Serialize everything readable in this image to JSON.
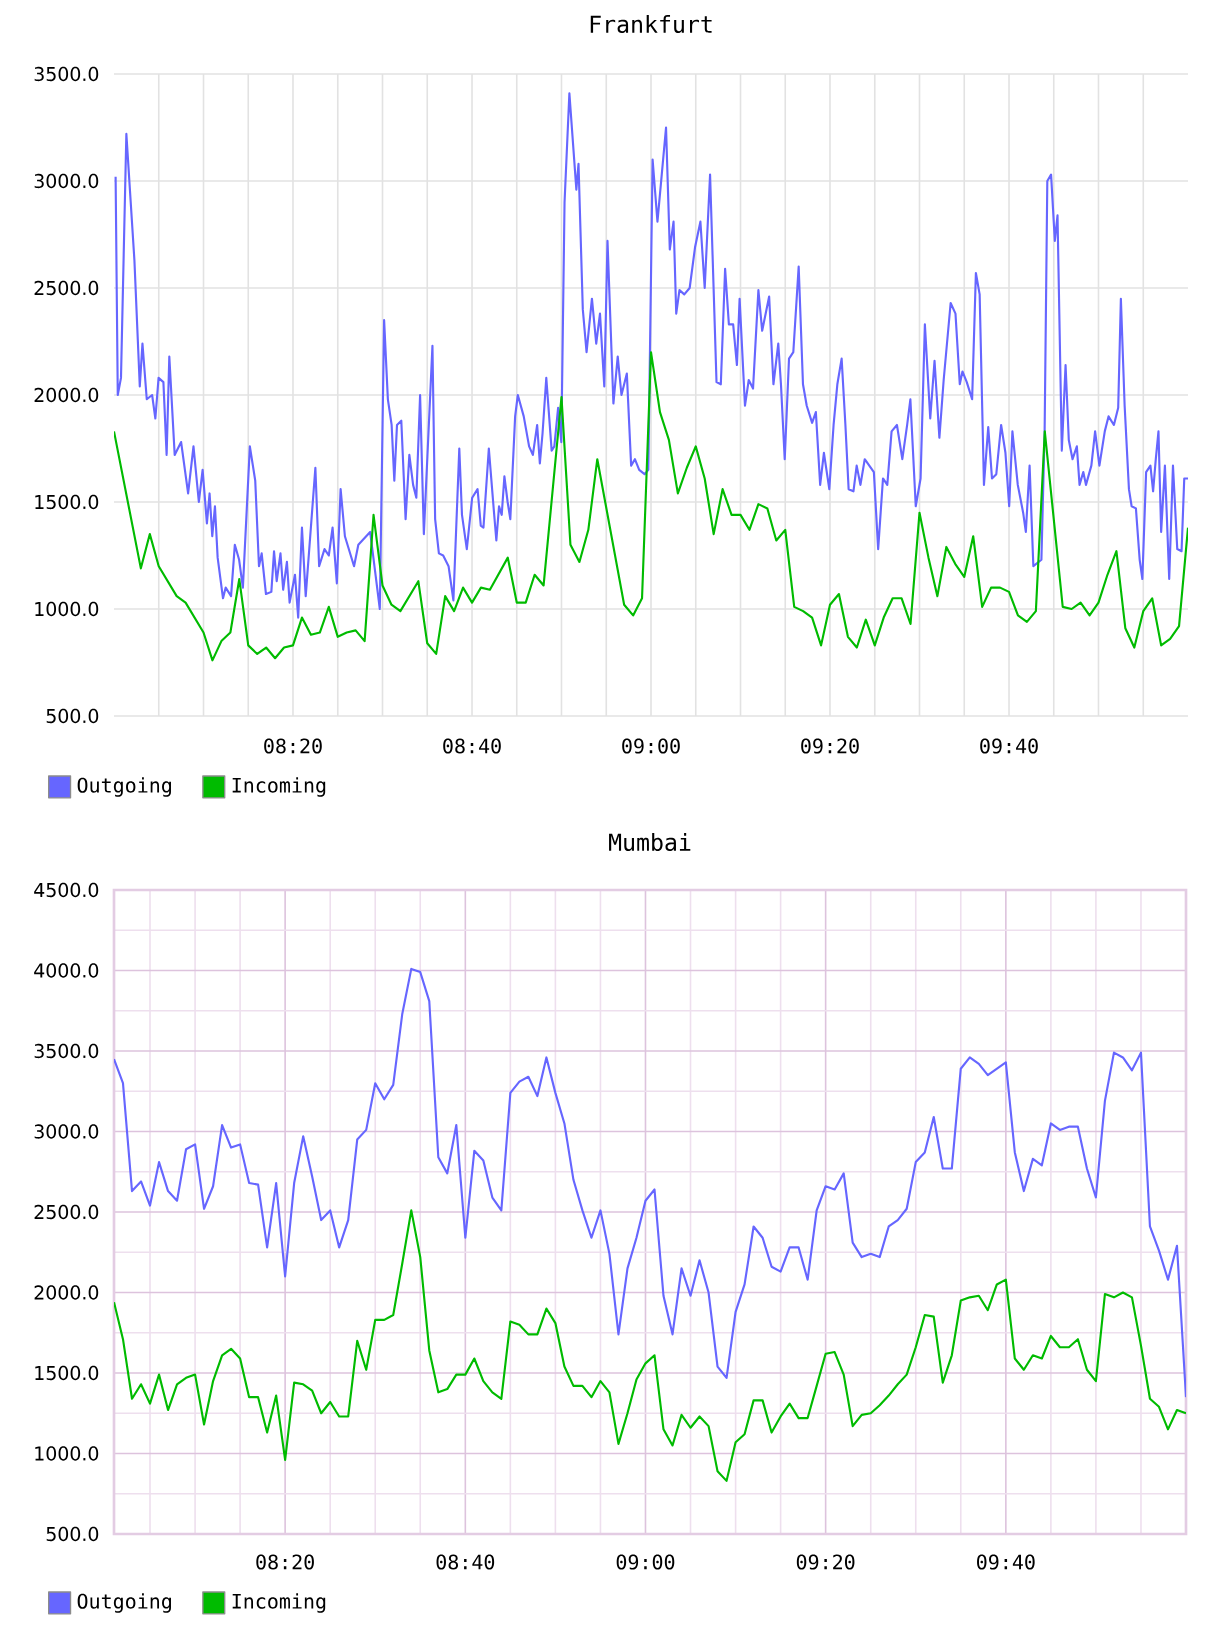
{
  "chart_data": [
    {
      "type": "line",
      "title": "Frankfurt",
      "xlim": [
        8.0,
        10.0
      ],
      "ylim": [
        500,
        3500
      ],
      "xticks": [
        {
          "value": 8.0833,
          "label": null
        },
        {
          "value": 8.1667,
          "label": null
        },
        {
          "value": 8.25,
          "label": null
        },
        {
          "value": 8.3333,
          "label": "08:20"
        },
        {
          "value": 8.4167,
          "label": null
        },
        {
          "value": 8.5,
          "label": null
        },
        {
          "value": 8.5833,
          "label": null
        },
        {
          "value": 8.6667,
          "label": "08:40"
        },
        {
          "value": 8.75,
          "label": null
        },
        {
          "value": 8.8333,
          "label": null
        },
        {
          "value": 8.9167,
          "label": null
        },
        {
          "value": 9.0,
          "label": "09:00"
        },
        {
          "value": 9.0833,
          "label": null
        },
        {
          "value": 9.1667,
          "label": null
        },
        {
          "value": 9.25,
          "label": null
        },
        {
          "value": 9.3333,
          "label": "09:20"
        },
        {
          "value": 9.4167,
          "label": null
        },
        {
          "value": 9.5,
          "label": null
        },
        {
          "value": 9.5833,
          "label": null
        },
        {
          "value": 9.6667,
          "label": "09:40"
        },
        {
          "value": 9.75,
          "label": null
        },
        {
          "value": 9.8333,
          "label": null
        },
        {
          "value": 9.9167,
          "label": null
        }
      ],
      "yticks": [
        {
          "value": 500,
          "label": "500.0"
        },
        {
          "value": 1000,
          "label": "1000.0"
        },
        {
          "value": 1500,
          "label": "1500.0"
        },
        {
          "value": 2000,
          "label": "2000.0"
        },
        {
          "value": 2500,
          "label": "2500.0"
        },
        {
          "value": 3000,
          "label": "3000.0"
        },
        {
          "value": 3500,
          "label": "3500.0"
        }
      ],
      "grid": true,
      "legend": "bottom left",
      "series": [
        {
          "name": "Outgoing",
          "color": "#6666ff",
          "x": [
            8.003,
            8.007,
            8.013,
            8.023,
            8.038,
            8.048,
            8.053,
            8.061,
            8.071,
            8.077,
            8.083,
            8.092,
            8.098,
            8.103,
            8.113,
            8.125,
            8.138,
            8.148,
            8.158,
            8.165,
            8.173,
            8.178,
            8.183,
            8.188,
            8.193,
            8.203,
            8.208,
            8.218,
            8.225,
            8.233,
            8.24,
            8.253,
            8.263,
            8.27,
            8.275,
            8.283,
            8.293,
            8.298,
            8.303,
            8.31,
            8.315,
            8.322,
            8.327,
            8.337,
            8.343,
            8.35,
            8.357,
            8.375,
            8.382,
            8.392,
            8.4,
            8.407,
            8.415,
            8.422,
            8.43,
            8.447,
            8.455,
            8.477,
            8.49,
            8.495,
            8.503,
            8.51,
            8.517,
            8.522,
            8.527,
            8.535,
            8.543,
            8.55,
            8.557,
            8.563,
            8.57,
            8.577,
            8.583,
            8.593,
            8.598,
            8.605,
            8.613,
            8.623,
            8.632,
            8.643,
            8.648,
            8.657,
            8.667,
            8.677,
            8.683,
            8.688,
            8.698,
            8.707,
            8.712,
            8.717,
            8.722,
            8.727,
            8.733,
            8.738,
            8.747,
            8.752,
            8.763,
            8.773,
            8.78,
            8.788,
            8.793,
            8.798,
            8.805,
            8.815,
            8.82,
            8.827,
            8.833,
            8.839,
            8.848,
            8.861,
            8.865,
            8.873,
            8.88,
            8.89,
            8.898,
            8.905,
            8.913,
            8.919,
            8.93,
            8.938,
            8.945,
            8.955,
            8.963,
            8.97,
            8.978,
            8.988,
            8.995,
            9.003,
            9.012,
            9.02,
            9.028,
            9.035,
            9.042,
            9.047,
            9.053,
            9.062,
            9.072,
            9.082,
            9.092,
            9.1,
            9.11,
            9.122,
            9.13,
            9.138,
            9.145,
            9.153,
            9.16,
            9.165,
            9.175,
            9.182,
            9.19,
            9.2,
            9.207,
            9.22,
            9.228,
            9.237,
            9.242,
            9.249,
            9.257,
            9.265,
            9.275,
            9.283,
            9.29,
            9.3,
            9.307,
            9.315,
            9.322,
            9.332,
            9.34,
            9.347,
            9.355,
            9.362,
            9.368,
            9.377,
            9.383,
            9.39,
            9.398,
            9.415,
            9.423,
            9.432,
            9.44,
            9.448,
            9.458,
            9.468,
            9.477,
            9.483,
            9.493,
            9.502,
            9.51,
            9.52,
            9.528,
            9.537,
            9.545,
            9.558,
            9.567,
            9.575,
            9.58,
            9.588,
            9.598,
            9.605,
            9.612,
            9.62,
            9.628,
            9.635,
            9.643,
            9.652,
            9.66,
            9.667,
            9.673,
            9.683,
            9.693,
            9.698,
            9.705,
            9.712,
            9.727,
            9.733,
            9.738,
            9.745,
            9.752,
            9.757,
            9.765,
            9.772,
            9.778,
            9.785,
            9.793,
            9.798,
            9.805,
            9.81,
            9.82,
            9.827,
            9.835,
            9.845,
            9.852,
            9.862,
            9.87,
            9.875,
            9.882,
            9.89,
            9.895,
            9.903,
            9.91,
            9.915,
            9.922,
            9.93,
            9.935,
            9.94,
            9.945,
            9.95,
            9.957,
            9.965,
            9.972,
            9.98,
            9.988,
            9.993,
            10.0
          ],
          "values": [
            3020,
            2000,
            2080,
            3220,
            2630,
            2040,
            2240,
            1980,
            2000,
            1890,
            2080,
            2060,
            1720,
            2180,
            1720,
            1780,
            1540,
            1760,
            1500,
            1650,
            1400,
            1540,
            1340,
            1480,
            1240,
            1050,
            1100,
            1060,
            1300,
            1230,
            1100,
            1760,
            1600,
            1200,
            1260,
            1070,
            1080,
            1270,
            1130,
            1260,
            1090,
            1220,
            1030,
            1160,
            960,
            1380,
            1060,
            1660,
            1200,
            1280,
            1250,
            1380,
            1120,
            1560,
            1340,
            1200,
            1300,
            1360,
            1100,
            1000,
            2350,
            1980,
            1860,
            1600,
            1860,
            1880,
            1420,
            1720,
            1580,
            1520,
            2000,
            1350,
            1680,
            2230,
            1420,
            1260,
            1250,
            1200,
            1040,
            1750,
            1440,
            1280,
            1520,
            1560,
            1390,
            1380,
            1750,
            1470,
            1320,
            1480,
            1440,
            1620,
            1500,
            1420,
            1900,
            2000,
            1900,
            1760,
            1720,
            1860,
            1680,
            1820,
            2080,
            1740,
            1760,
            1940,
            1780,
            2900,
            3410,
            2960,
            3080,
            2400,
            2200,
            2450,
            2240,
            2380,
            2040,
            2720,
            1960,
            2180,
            2000,
            2100,
            1670,
            1700,
            1650,
            1630,
            1650,
            3100,
            2810,
            3030,
            3250,
            2680,
            2810,
            2380,
            2490,
            2470,
            2500,
            2690,
            2810,
            2500,
            3030,
            2060,
            2050,
            2590,
            2330,
            2330,
            2140,
            2450,
            1950,
            2070,
            2030,
            2490,
            2300,
            2460,
            2050,
            2240,
            2050,
            1700,
            2170,
            2200,
            2600,
            2050,
            1950,
            1870,
            1920,
            1580,
            1730,
            1560,
            1860,
            2050,
            2170,
            1860,
            1560,
            1550,
            1670,
            1580,
            1700,
            1640,
            1280,
            1610,
            1580,
            1830,
            1860,
            1700,
            1860,
            1980,
            1480,
            1610,
            2330,
            1890,
            2160,
            1800,
            2070,
            2430,
            2380,
            2050,
            2110,
            2060,
            1980,
            2570,
            2470,
            1580,
            1850,
            1610,
            1630,
            1860,
            1730,
            1480,
            1830,
            1580,
            1450,
            1360,
            1670,
            1200,
            1230,
            1830,
            3000,
            3030,
            2720,
            2840,
            1740,
            2140,
            1790,
            1700,
            1760,
            1580,
            1640,
            1580,
            1670,
            1830,
            1670,
            1830,
            1900,
            1860,
            1940,
            2450,
            1950,
            1560,
            1480,
            1470,
            1230,
            1140,
            1640,
            1670,
            1550,
            1700,
            1830,
            1360,
            1670,
            1140,
            1670,
            1280,
            1270,
            1610,
            1610
          ]
        },
        {
          "name": "Incoming",
          "color": "#00bb00",
          "x": [
            8.0,
            8.05,
            8.0667,
            8.0833,
            8.1167,
            8.1333,
            8.1667,
            8.1833,
            8.2,
            8.2167,
            8.2333,
            8.25,
            8.2667,
            8.2833,
            8.3,
            8.3167,
            8.3333,
            8.35,
            8.3667,
            8.3833,
            8.4,
            8.4167,
            8.4333,
            8.45,
            8.4667,
            8.4833,
            8.5,
            8.5167,
            8.5333,
            8.5667,
            8.5833,
            8.6,
            8.6167,
            8.6333,
            8.65,
            8.6667,
            8.6833,
            8.7,
            8.7333,
            8.75,
            8.7667,
            8.7833,
            8.8,
            8.8333,
            8.85,
            8.8667,
            8.8833,
            8.9,
            8.95,
            8.9667,
            8.9833,
            9.0,
            9.0167,
            9.0333,
            9.05,
            9.0667,
            9.0833,
            9.1,
            9.1167,
            9.1333,
            9.15,
            9.1667,
            9.1833,
            9.2,
            9.2167,
            9.2333,
            9.25,
            9.2667,
            9.2833,
            9.3,
            9.3167,
            9.3333,
            9.35,
            9.3667,
            9.3833,
            9.4,
            9.4167,
            9.4333,
            9.45,
            9.4667,
            9.4833,
            9.5,
            9.5167,
            9.5333,
            9.55,
            9.5667,
            9.5833,
            9.6,
            9.6167,
            9.6333,
            9.65,
            9.6667,
            9.6833,
            9.7,
            9.7167,
            9.7333,
            9.7667,
            9.7833,
            9.8,
            9.8167,
            9.8333,
            9.85,
            9.8667,
            9.8833,
            9.9,
            9.9167,
            9.9333,
            9.95,
            9.9667,
            9.9833,
            10.0
          ],
          "values": [
            1830,
            1190,
            1350,
            1200,
            1060,
            1030,
            890,
            760,
            850,
            890,
            1140,
            830,
            790,
            820,
            770,
            820,
            830,
            960,
            880,
            890,
            1010,
            870,
            890,
            900,
            850,
            1440,
            1110,
            1020,
            990,
            1130,
            840,
            790,
            1060,
            990,
            1100,
            1030,
            1100,
            1090,
            1240,
            1030,
            1030,
            1160,
            1110,
            1990,
            1300,
            1220,
            1370,
            1700,
            1020,
            970,
            1050,
            2200,
            1920,
            1790,
            1540,
            1660,
            1760,
            1610,
            1350,
            1560,
            1440,
            1440,
            1370,
            1490,
            1470,
            1320,
            1370,
            1010,
            990,
            960,
            830,
            1020,
            1070,
            870,
            820,
            950,
            830,
            960,
            1050,
            1050,
            930,
            1450,
            1240,
            1060,
            1290,
            1210,
            1150,
            1340,
            1010,
            1100,
            1100,
            1080,
            970,
            940,
            990,
            1830,
            1010,
            1000,
            1030,
            970,
            1030,
            1160,
            1270,
            910,
            820,
            990,
            1050,
            830,
            860,
            920,
            1380
          ]
        }
      ]
    },
    {
      "type": "line",
      "title": "Mumbai",
      "xlim": [
        8.0167,
        10.0
      ],
      "ylim": [
        500,
        4500
      ],
      "xticks": [
        {
          "value": 8.0833,
          "label": null
        },
        {
          "value": 8.1667,
          "label": null
        },
        {
          "value": 8.25,
          "label": null
        },
        {
          "value": 8.3333,
          "label": "08:20"
        },
        {
          "value": 8.4167,
          "label": null
        },
        {
          "value": 8.5,
          "label": null
        },
        {
          "value": 8.5833,
          "label": null
        },
        {
          "value": 8.6667,
          "label": "08:40"
        },
        {
          "value": 8.75,
          "label": null
        },
        {
          "value": 8.8333,
          "label": null
        },
        {
          "value": 8.9167,
          "label": null
        },
        {
          "value": 9.0,
          "label": "09:00"
        },
        {
          "value": 9.0833,
          "label": null
        },
        {
          "value": 9.1667,
          "label": null
        },
        {
          "value": 9.25,
          "label": null
        },
        {
          "value": 9.3333,
          "label": "09:20"
        },
        {
          "value": 9.4167,
          "label": null
        },
        {
          "value": 9.5,
          "label": null
        },
        {
          "value": 9.5833,
          "label": null
        },
        {
          "value": 9.6667,
          "label": "09:40"
        },
        {
          "value": 9.75,
          "label": null
        },
        {
          "value": 9.8333,
          "label": null
        },
        {
          "value": 9.9167,
          "label": null
        }
      ],
      "yticks": [
        {
          "value": 500,
          "label": "500.0"
        },
        {
          "value": 750,
          "label": null
        },
        {
          "value": 1000,
          "label": "1000.0"
        },
        {
          "value": 1250,
          "label": null
        },
        {
          "value": 1500,
          "label": "1500.0"
        },
        {
          "value": 1750,
          "label": null
        },
        {
          "value": 2000,
          "label": "2000.0"
        },
        {
          "value": 2250,
          "label": null
        },
        {
          "value": 2500,
          "label": "2500.0"
        },
        {
          "value": 2750,
          "label": null
        },
        {
          "value": 3000,
          "label": "3000.0"
        },
        {
          "value": 3250,
          "label": null
        },
        {
          "value": 3500,
          "label": "3500.0"
        },
        {
          "value": 3750,
          "label": null
        },
        {
          "value": 4000,
          "label": "4000.0"
        },
        {
          "value": 4250,
          "label": null
        },
        {
          "value": 4500,
          "label": "4500.0"
        }
      ],
      "grid": true,
      "legend": "bottom left",
      "x": [
        8.0167,
        8.0333,
        8.05,
        8.0667,
        8.0833,
        8.1,
        8.1167,
        8.1333,
        8.15,
        8.1667,
        8.1833,
        8.2,
        8.2167,
        8.2333,
        8.25,
        8.2667,
        8.2833,
        8.3,
        8.3167,
        8.3333,
        8.35,
        8.3667,
        8.3833,
        8.4,
        8.4167,
        8.4333,
        8.45,
        8.4667,
        8.4833,
        8.5,
        8.5167,
        8.5333,
        8.55,
        8.5667,
        8.5833,
        8.6,
        8.6167,
        8.6333,
        8.65,
        8.6667,
        8.6833,
        8.7,
        8.7167,
        8.7333,
        8.75,
        8.7667,
        8.7833,
        8.8,
        8.8167,
        8.8333,
        8.85,
        8.8667,
        8.8833,
        8.9,
        8.9167,
        8.9333,
        8.95,
        8.9667,
        8.9833,
        9.0,
        9.0167,
        9.0333,
        9.05,
        9.0667,
        9.0833,
        9.1,
        9.1167,
        9.1333,
        9.15,
        9.1667,
        9.1833,
        9.2,
        9.2167,
        9.2333,
        9.25,
        9.2667,
        9.2833,
        9.3,
        9.3167,
        9.3333,
        9.35,
        9.3667,
        9.3833,
        9.4,
        9.4167,
        9.4333,
        9.45,
        9.4667,
        9.4833,
        9.5,
        9.5167,
        9.5333,
        9.55,
        9.5667,
        9.5833,
        9.6,
        9.6167,
        9.6333,
        9.65,
        9.6667,
        9.6833,
        9.7,
        9.7167,
        9.7333,
        9.75,
        9.7667,
        9.7833,
        9.8,
        9.8167,
        9.8333,
        9.85,
        9.8667,
        9.8833,
        9.9,
        9.9167,
        9.9333,
        9.95,
        9.9667,
        9.9833,
        10.0
      ],
      "series": [
        {
          "name": "Outgoing",
          "color": "#6666ff",
          "values": [
            3450,
            3300,
            2630,
            2690,
            2540,
            2810,
            2630,
            2570,
            2890,
            2920,
            2520,
            2660,
            3040,
            2900,
            2920,
            2680,
            2670,
            2280,
            2680,
            2100,
            2680,
            2970,
            2720,
            2450,
            2510,
            2280,
            2450,
            2950,
            3010,
            3300,
            3200,
            3290,
            3730,
            4010,
            3990,
            3810,
            2840,
            2740,
            3040,
            2340,
            2880,
            2820,
            2590,
            2510,
            3240,
            3310,
            3340,
            3220,
            3460,
            3240,
            3050,
            2700,
            2510,
            2340,
            2510,
            2240,
            1740,
            2150,
            2340,
            2570,
            2640,
            1980,
            1740,
            2150,
            1980,
            2200,
            2000,
            1540,
            1470,
            1880,
            2050,
            2410,
            2340,
            2160,
            2130,
            2280,
            2280,
            2080,
            2510,
            2660,
            2640,
            2740,
            2310,
            2220,
            2240,
            2220,
            2410,
            2450,
            2520,
            2810,
            2870,
            3090,
            2770,
            2770,
            3390,
            3460,
            3420,
            3350,
            3390,
            3430,
            2870,
            2630,
            2830,
            2790,
            3050,
            3010,
            3030,
            3030,
            2770,
            2590,
            3190,
            3490,
            3460,
            3380,
            3490,
            2410,
            2260,
            2080,
            2290,
            1350
          ]
        },
        {
          "name": "Incoming",
          "color": "#00bb00",
          "values": [
            1940,
            1710,
            1340,
            1430,
            1310,
            1490,
            1270,
            1430,
            1470,
            1490,
            1180,
            1450,
            1610,
            1650,
            1590,
            1350,
            1350,
            1130,
            1360,
            960,
            1440,
            1430,
            1390,
            1250,
            1320,
            1230,
            1230,
            1700,
            1520,
            1830,
            1830,
            1860,
            2180,
            2510,
            2220,
            1640,
            1380,
            1400,
            1490,
            1490,
            1590,
            1450,
            1380,
            1340,
            1820,
            1800,
            1740,
            1740,
            1900,
            1810,
            1540,
            1420,
            1420,
            1350,
            1450,
            1380,
            1060,
            1250,
            1460,
            1560,
            1610,
            1150,
            1050,
            1240,
            1160,
            1230,
            1170,
            890,
            830,
            1070,
            1120,
            1330,
            1330,
            1130,
            1230,
            1310,
            1220,
            1220,
            1420,
            1620,
            1630,
            1490,
            1170,
            1240,
            1250,
            1300,
            1360,
            1430,
            1490,
            1660,
            1860,
            1850,
            1440,
            1610,
            1950,
            1970,
            1980,
            1890,
            2050,
            2080,
            1590,
            1520,
            1610,
            1590,
            1730,
            1660,
            1660,
            1710,
            1520,
            1450,
            1990,
            1970,
            2000,
            1970,
            1670,
            1340,
            1290,
            1150,
            1270,
            1250
          ]
        }
      ]
    }
  ]
}
